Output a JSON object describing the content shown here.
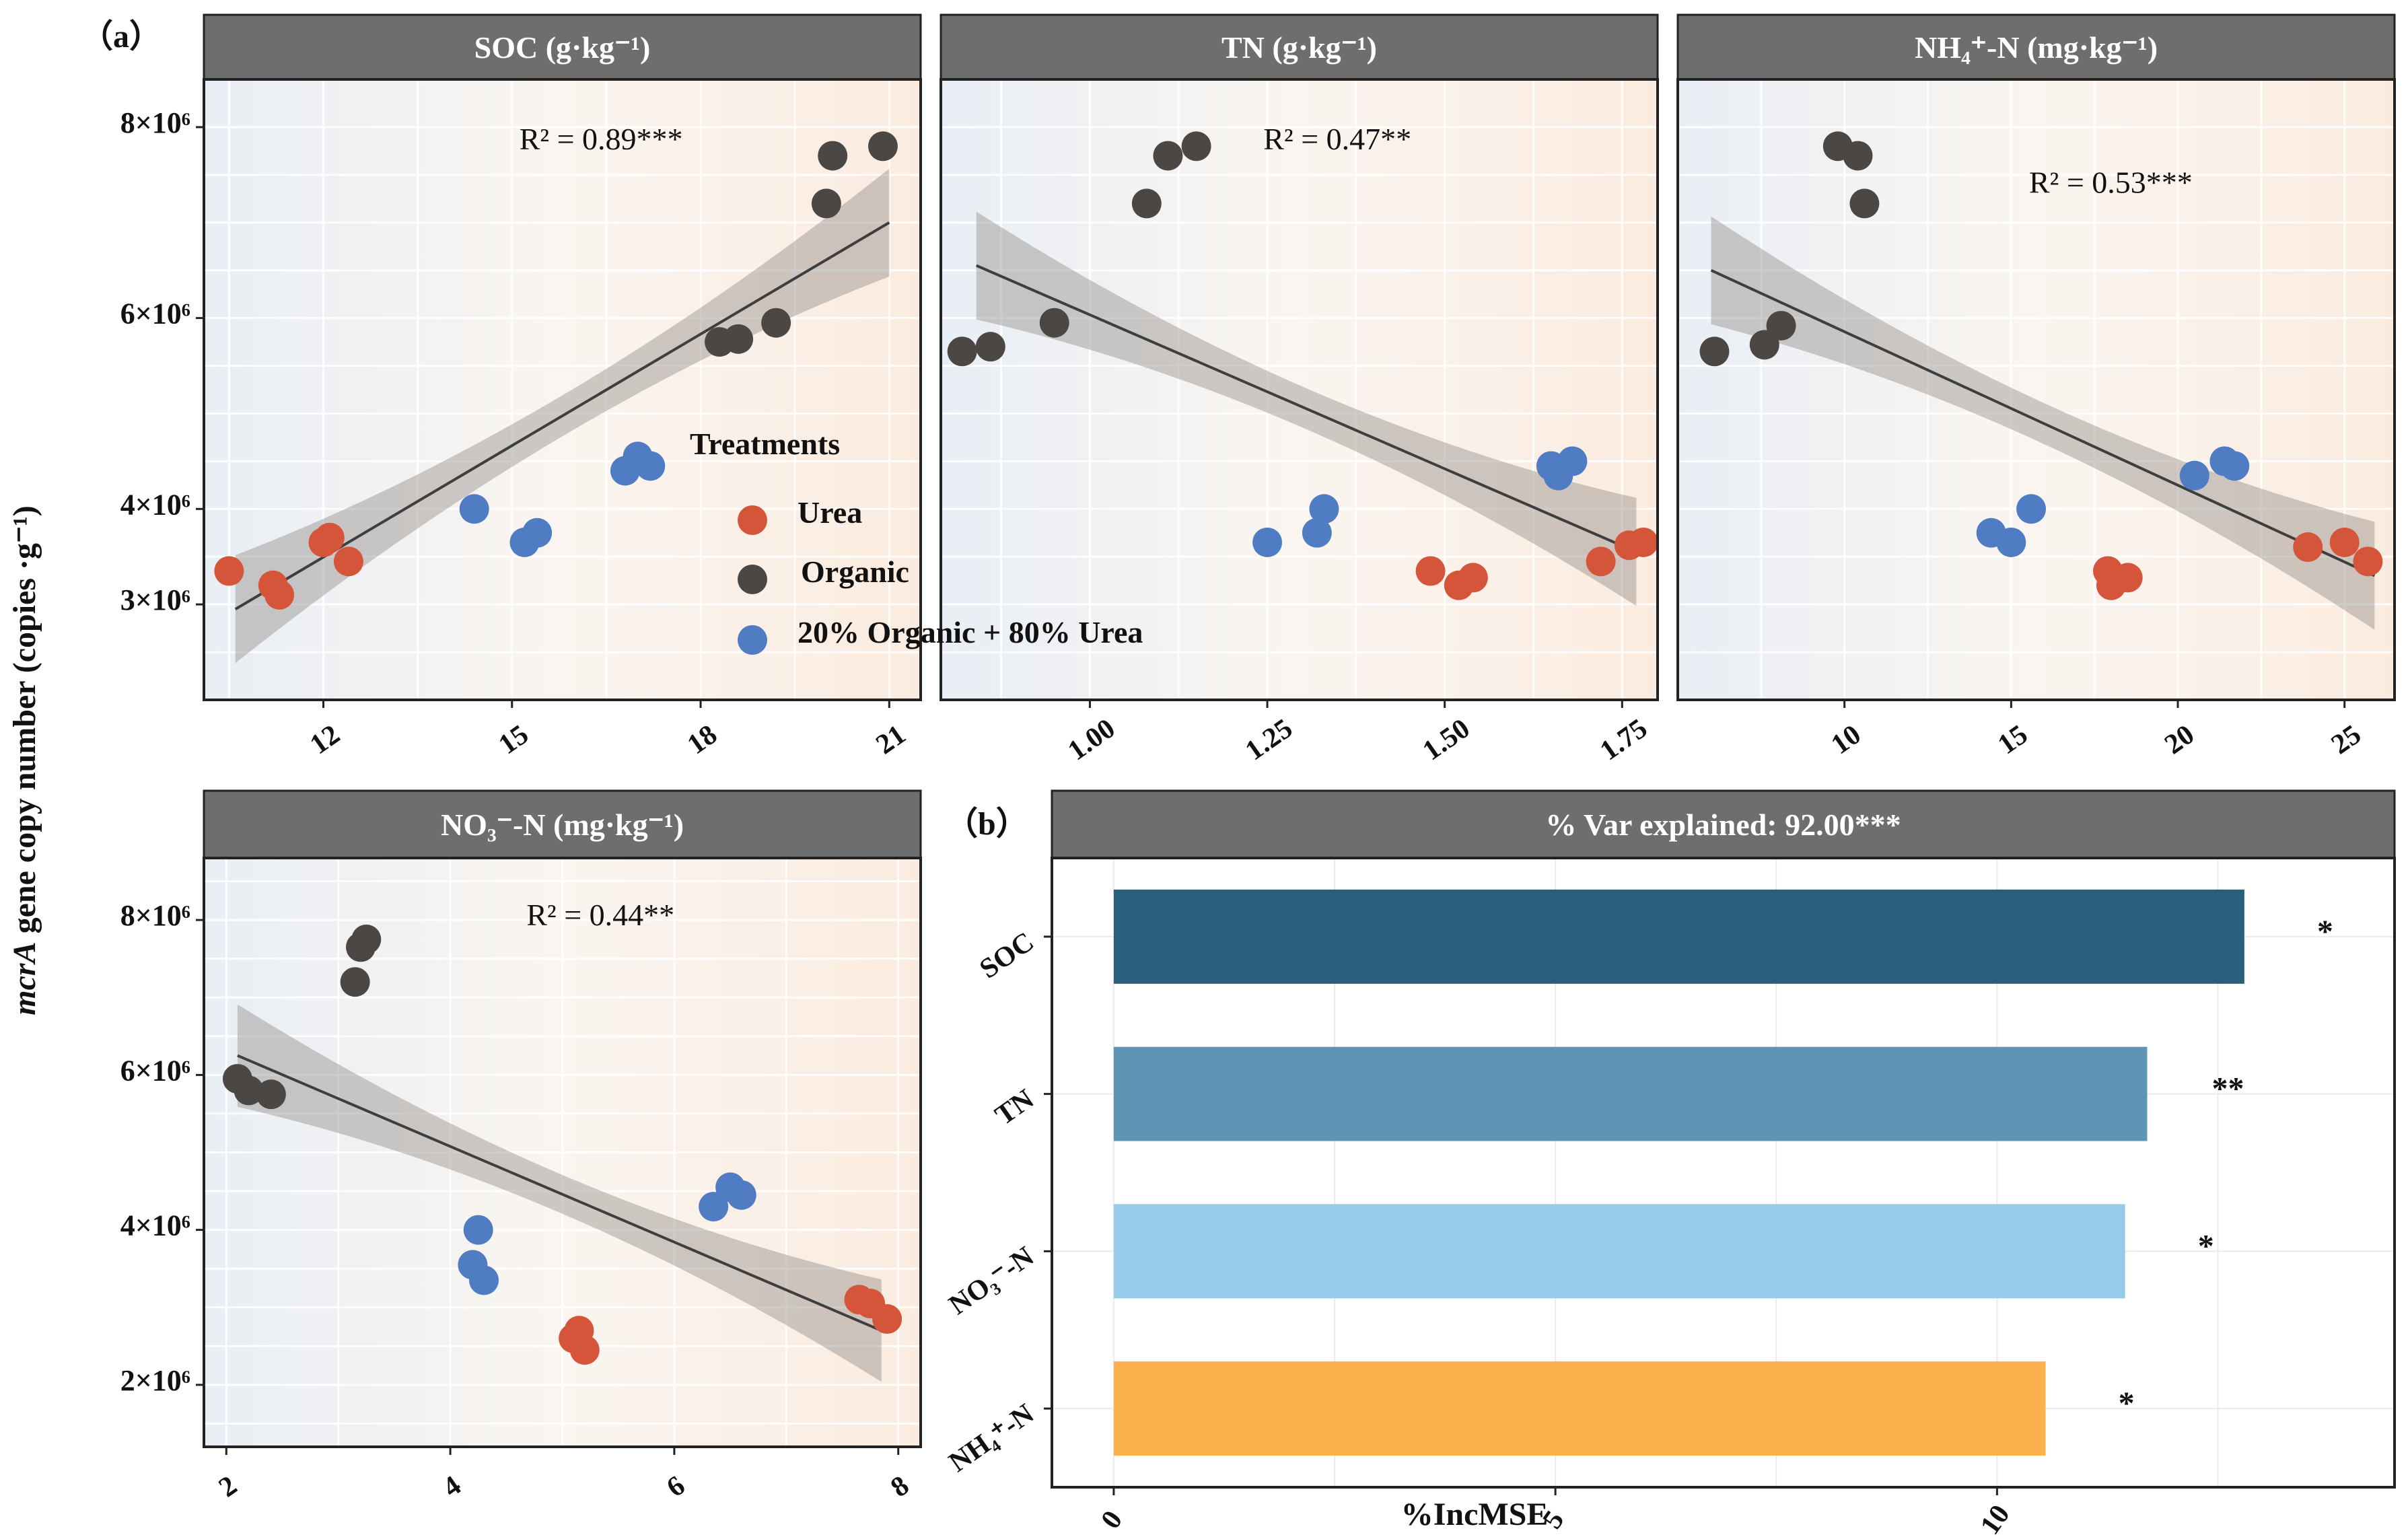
{
  "figure": {
    "panel_a_label": "（a）",
    "panel_b_label": "（b）",
    "y_axis_label_italic": "mcrA",
    "y_axis_label_rest": " gene copy number (copies ·g⁻¹)"
  },
  "legend": {
    "title": "Treatments",
    "items": [
      {
        "label": "Urea",
        "color": "#D4553A"
      },
      {
        "label": "Organic",
        "color": "#4A4744"
      },
      {
        "label": "20% Organic + 80% Urea",
        "color": "#4F7CC2"
      }
    ]
  },
  "chart_data": [
    {
      "type": "scatter",
      "title": "SOC (g·kg⁻¹)",
      "r2_label": "R² = 0.89***",
      "xlim": [
        10.1,
        21.5
      ],
      "ylim": [
        2.0,
        8.5
      ],
      "x_ticks": [
        {
          "v": 12,
          "label": "12"
        },
        {
          "v": 15,
          "label": "15"
        },
        {
          "v": 18,
          "label": "18"
        },
        {
          "v": 21,
          "label": "21"
        }
      ],
      "y_ticks": [
        {
          "v": 3,
          "label": "3×10⁶"
        },
        {
          "v": 4,
          "label": "4×10⁶"
        },
        {
          "v": 6,
          "label": "6×10⁶"
        },
        {
          "v": 8,
          "label": "8×10⁶"
        }
      ],
      "fit": {
        "x0": 10.6,
        "y0": 2.95,
        "x1": 21.0,
        "y1": 7.0
      },
      "points": {
        "Urea": [
          [
            10.5,
            3.35
          ],
          [
            11.2,
            3.2
          ],
          [
            11.3,
            3.1
          ],
          [
            12.0,
            3.65
          ],
          [
            12.1,
            3.7
          ],
          [
            12.4,
            3.45
          ]
        ],
        "Organic": [
          [
            18.3,
            5.75
          ],
          [
            18.6,
            5.78
          ],
          [
            19.2,
            5.95
          ],
          [
            20.0,
            7.2
          ],
          [
            20.1,
            7.7
          ],
          [
            20.9,
            7.8
          ]
        ],
        "20% Organic + 80% Urea": [
          [
            14.4,
            4.0
          ],
          [
            15.2,
            3.65
          ],
          [
            15.4,
            3.75
          ],
          [
            16.8,
            4.4
          ],
          [
            17.0,
            4.55
          ],
          [
            17.2,
            4.45
          ]
        ]
      }
    },
    {
      "type": "scatter",
      "title": "TN (g·kg⁻¹)",
      "r2_label": "R² = 0.47**",
      "xlim": [
        0.79,
        1.8
      ],
      "ylim": [
        2.0,
        8.5
      ],
      "x_ticks": [
        {
          "v": 1.0,
          "label": "1.00"
        },
        {
          "v": 1.25,
          "label": "1.25"
        },
        {
          "v": 1.5,
          "label": "1.50"
        },
        {
          "v": 1.75,
          "label": "1.75"
        }
      ],
      "y_ticks": [],
      "fit": {
        "x0": 0.84,
        "y0": 6.55,
        "x1": 1.77,
        "y1": 3.55
      },
      "points": {
        "Urea": [
          [
            1.48,
            3.35
          ],
          [
            1.52,
            3.2
          ],
          [
            1.54,
            3.28
          ],
          [
            1.72,
            3.45
          ],
          [
            1.76,
            3.62
          ],
          [
            1.78,
            3.65
          ]
        ],
        "Organic": [
          [
            0.82,
            5.65
          ],
          [
            0.86,
            5.7
          ],
          [
            0.95,
            5.95
          ],
          [
            1.08,
            7.2
          ],
          [
            1.11,
            7.7
          ],
          [
            1.15,
            7.8
          ]
        ],
        "20% Organic + 80% Urea": [
          [
            1.25,
            3.65
          ],
          [
            1.32,
            3.75
          ],
          [
            1.33,
            4.0
          ],
          [
            1.65,
            4.45
          ],
          [
            1.66,
            4.35
          ],
          [
            1.68,
            4.5
          ]
        ]
      }
    },
    {
      "type": "scatter",
      "title": "NH₄⁺-N (mg·kg⁻¹)",
      "r2_label": "R² = 0.53***",
      "xlim": [
        5.0,
        26.5
      ],
      "ylim": [
        2.0,
        8.5
      ],
      "x_ticks": [
        {
          "v": 10,
          "label": "10"
        },
        {
          "v": 15,
          "label": "15"
        },
        {
          "v": 20,
          "label": "20"
        },
        {
          "v": 25,
          "label": "25"
        }
      ],
      "y_ticks": [],
      "fit": {
        "x0": 6.0,
        "y0": 6.5,
        "x1": 25.9,
        "y1": 3.3
      },
      "points": {
        "Urea": [
          [
            17.9,
            3.35
          ],
          [
            18.0,
            3.2
          ],
          [
            18.5,
            3.28
          ],
          [
            23.9,
            3.6
          ],
          [
            25.0,
            3.65
          ],
          [
            25.7,
            3.45
          ]
        ],
        "Organic": [
          [
            6.1,
            5.65
          ],
          [
            7.6,
            5.72
          ],
          [
            8.1,
            5.92
          ],
          [
            9.8,
            7.8
          ],
          [
            10.4,
            7.7
          ],
          [
            10.6,
            7.2
          ]
        ],
        "20% Organic + 80% Urea": [
          [
            14.4,
            3.75
          ],
          [
            15.0,
            3.65
          ],
          [
            15.6,
            4.0
          ],
          [
            20.5,
            4.35
          ],
          [
            21.4,
            4.5
          ],
          [
            21.7,
            4.45
          ]
        ]
      }
    },
    {
      "type": "scatter",
      "title": "NO₃⁻-N (mg·kg⁻¹)",
      "r2_label": "R² = 0.44**",
      "xlim": [
        1.8,
        8.2
      ],
      "ylim": [
        1.2,
        8.8
      ],
      "x_ticks": [
        {
          "v": 2,
          "label": "2"
        },
        {
          "v": 4,
          "label": "4"
        },
        {
          "v": 6,
          "label": "6"
        },
        {
          "v": 8,
          "label": "8"
        }
      ],
      "y_ticks": [
        {
          "v": 2,
          "label": "2×10⁶"
        },
        {
          "v": 4,
          "label": "4×10⁶"
        },
        {
          "v": 6,
          "label": "6×10⁶"
        },
        {
          "v": 8,
          "label": "8×10⁶"
        }
      ],
      "fit": {
        "x0": 2.1,
        "y0": 6.25,
        "x1": 7.85,
        "y1": 2.7
      },
      "points": {
        "Urea": [
          [
            5.1,
            2.6
          ],
          [
            5.15,
            2.7
          ],
          [
            5.2,
            2.45
          ],
          [
            7.65,
            3.1
          ],
          [
            7.75,
            3.05
          ],
          [
            7.9,
            2.85
          ]
        ],
        "Organic": [
          [
            2.1,
            5.95
          ],
          [
            2.2,
            5.8
          ],
          [
            2.4,
            5.75
          ],
          [
            3.15,
            7.2
          ],
          [
            3.2,
            7.65
          ],
          [
            3.25,
            7.75
          ]
        ],
        "20% Organic + 80% Urea": [
          [
            4.2,
            3.55
          ],
          [
            4.25,
            4.0
          ],
          [
            4.3,
            3.35
          ],
          [
            6.35,
            4.3
          ],
          [
            6.5,
            4.55
          ],
          [
            6.6,
            4.45
          ]
        ]
      }
    },
    {
      "type": "bar",
      "orientation": "horizontal",
      "title": "% Var explained: 92.00***",
      "xlabel": "%IncMSE",
      "xlim": [
        -0.7,
        14.5
      ],
      "x_ticks": [
        {
          "v": 0,
          "label": "0"
        },
        {
          "v": 5,
          "label": "5"
        },
        {
          "v": 10,
          "label": "10"
        }
      ],
      "categories": [
        "SOC",
        "TN",
        "NO₃⁻-N",
        "NH₄⁺-N"
      ],
      "values": [
        12.8,
        11.7,
        11.45,
        10.55
      ],
      "significance": [
        "*",
        "**",
        "*",
        "*"
      ],
      "colors": [
        "#2A5F7C",
        "#5E95B4",
        "#97CBE9",
        "#FBB14D"
      ]
    }
  ]
}
